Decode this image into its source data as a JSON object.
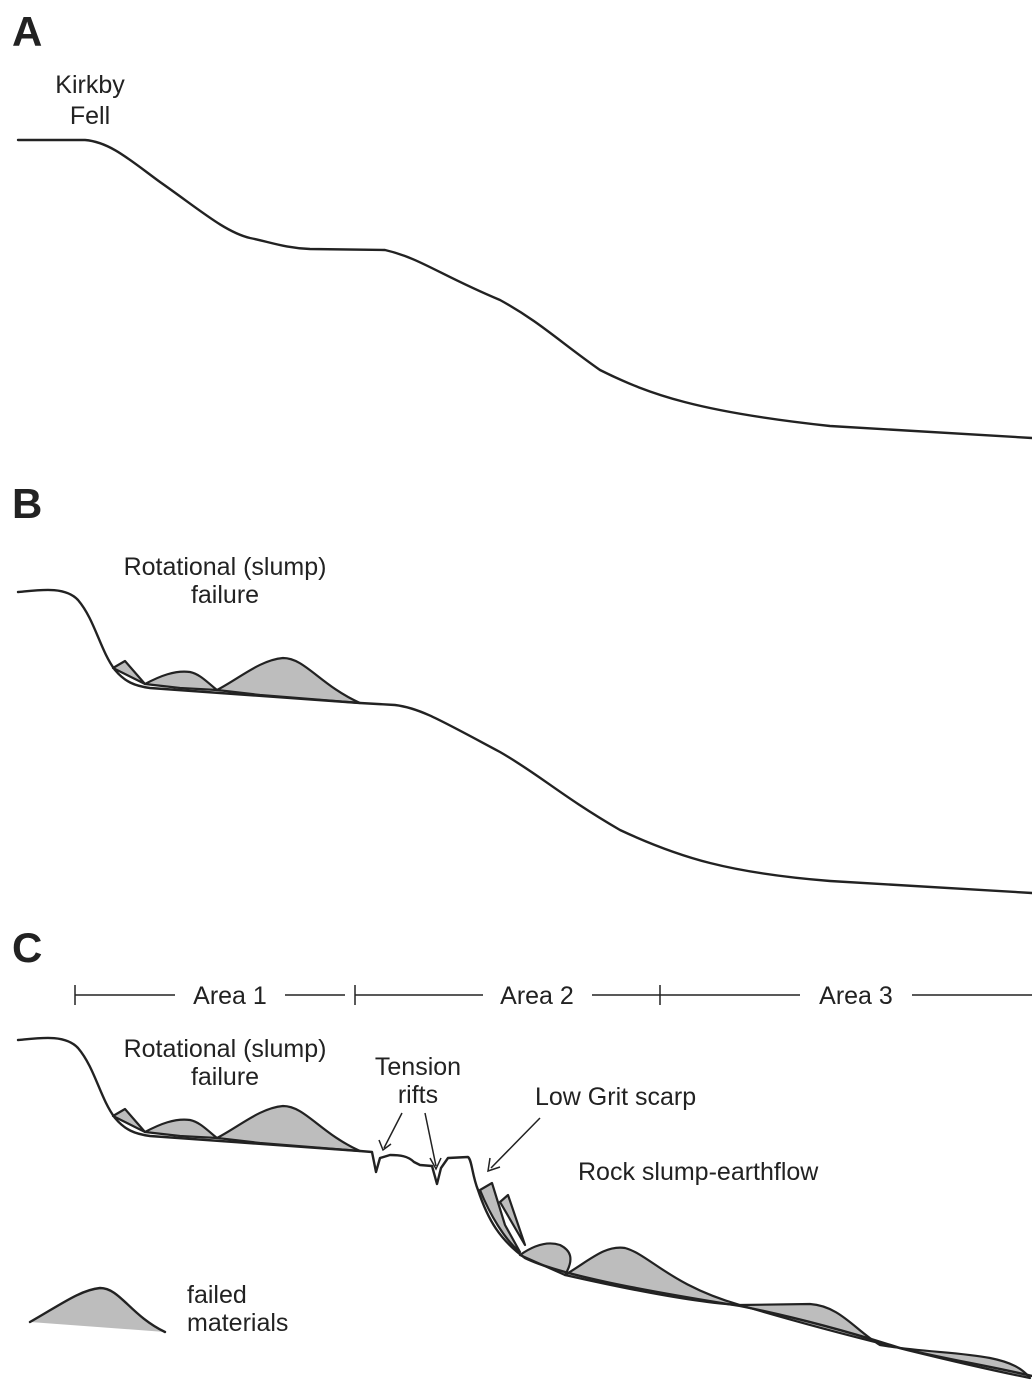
{
  "panels": [
    {
      "label": "A",
      "annotations": [
        {
          "lines": [
            "Kirkby",
            "Fell"
          ]
        }
      ]
    },
    {
      "label": "B",
      "annotations": [
        {
          "lines": [
            "Rotational (slump)",
            "failure"
          ]
        }
      ]
    },
    {
      "label": "C",
      "areas": [
        "Area 1",
        "Area 2",
        "Area 3"
      ],
      "annotations": [
        {
          "lines": [
            "Rotational (slump)",
            "failure"
          ]
        },
        {
          "lines": [
            "Tension",
            "rifts"
          ]
        },
        {
          "lines": [
            "Low Grit scarp"
          ]
        },
        {
          "lines": [
            "Rock slump-earthflow"
          ]
        }
      ]
    }
  ],
  "legend": {
    "lines": [
      "failed",
      "materials"
    ]
  }
}
